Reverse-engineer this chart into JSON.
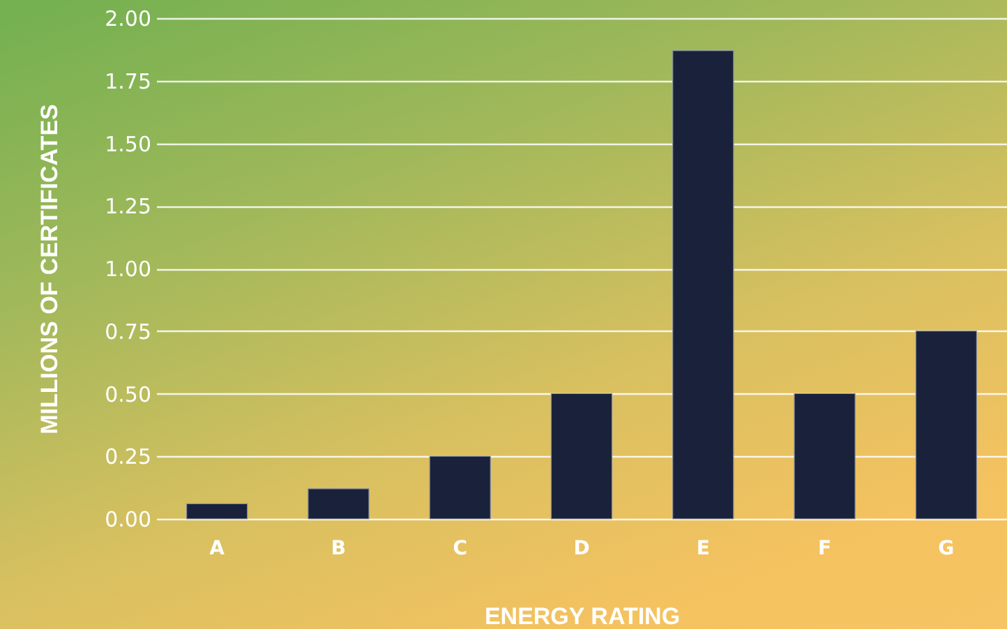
{
  "chart_data": {
    "type": "bar",
    "xlabel": "ENERGY RATING",
    "ylabel": "MILLIONS OF CERTIFICATES",
    "categories": [
      "A",
      "B",
      "C",
      "D",
      "E",
      "F",
      "G"
    ],
    "values": [
      0.06,
      0.12,
      0.25,
      0.5,
      1.87,
      0.5,
      0.75
    ],
    "color": "#19223a",
    "ylim": [
      0,
      2
    ],
    "yticks": [
      {
        "value": 0,
        "label": "0.00"
      },
      {
        "value": 0.25,
        "label": "0.25"
      },
      {
        "value": 0.5,
        "label": "0.50"
      },
      {
        "value": 0.75,
        "label": "0.75"
      },
      {
        "value": 1,
        "label": "1.00"
      },
      {
        "value": 1.25,
        "label": "1.25"
      },
      {
        "value": 1.5,
        "label": "1.50"
      },
      {
        "value": 1.75,
        "label": "1.75"
      },
      {
        "value": 2,
        "label": "2.00"
      }
    ],
    "grid": "y"
  }
}
